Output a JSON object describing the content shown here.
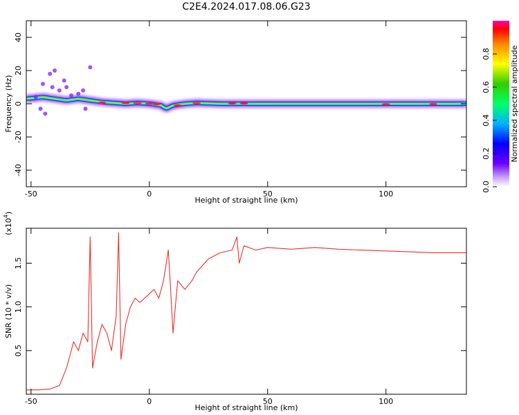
{
  "title": "C2E4.2024.017.08.06.G23",
  "chart_data": [
    {
      "type": "heatmap",
      "xlabel": "Height of straight line (km)",
      "ylabel": "Frequency (Hz)",
      "xlim": [
        -52,
        134
      ],
      "ylim": [
        -50,
        50
      ],
      "x_ticks": [
        -50,
        0,
        50,
        100
      ],
      "y_ticks": [
        -40,
        -20,
        0,
        20,
        40
      ],
      "x_tick_labels": [
        "-50",
        "0",
        "50",
        "100"
      ],
      "y_tick_labels": [
        "-40",
        "-20",
        "0",
        "20",
        "40"
      ],
      "colorbar": {
        "label": "Normalized spectral amplitude",
        "range": [
          0,
          1
        ],
        "ticks": [
          0.0,
          0.2,
          0.4,
          0.6,
          0.8
        ],
        "tick_labels": [
          "0.0",
          "0.2",
          "0.4",
          "0.6",
          "0.8"
        ]
      },
      "ridge": {
        "x": [
          -52,
          -45,
          -40,
          -35,
          -30,
          -25,
          -20,
          -15,
          -10,
          -5,
          0,
          5,
          7,
          10,
          15,
          20,
          30,
          40,
          50,
          60,
          70,
          80,
          90,
          100,
          110,
          120,
          134
        ],
        "y": [
          3,
          4,
          3,
          2,
          3,
          2,
          1,
          0.5,
          0,
          0.5,
          0,
          -1,
          -3,
          -1,
          0,
          0.5,
          0,
          0,
          0,
          0,
          0,
          0,
          0,
          0,
          0,
          0,
          0
        ]
      }
    },
    {
      "type": "line",
      "xlabel": "Height of straight line (km)",
      "ylabel": "SNR (10 * v/v)",
      "scale_label": "(x10",
      "scale_exp": "4",
      "scale_close": ")",
      "xlim": [
        -52,
        134
      ],
      "ylim": [
        0,
        1.9
      ],
      "x_ticks": [
        -50,
        0,
        50,
        100
      ],
      "y_ticks": [
        0.5,
        1.0,
        1.5
      ],
      "x_tick_labels": [
        "-50",
        "0",
        "50",
        "100"
      ],
      "y_tick_labels": [
        "0.5",
        "1.0",
        "1.5"
      ],
      "series": [
        {
          "color": "#e8302c",
          "x": [
            -52,
            -47,
            -42,
            -38,
            -35,
            -32,
            -30,
            -28,
            -26,
            -25,
            -24,
            -22,
            -20,
            -18,
            -16,
            -14,
            -13,
            -12,
            -10,
            -8,
            -6,
            -4,
            -2,
            0,
            2,
            4,
            6,
            8,
            9,
            10,
            12,
            15,
            18,
            20,
            25,
            30,
            35,
            37,
            38,
            40,
            45,
            50,
            60,
            70,
            80,
            90,
            100,
            110,
            120,
            134
          ],
          "y": [
            0.05,
            0.05,
            0.06,
            0.1,
            0.3,
            0.6,
            0.5,
            0.7,
            0.6,
            1.8,
            0.3,
            0.6,
            0.8,
            0.7,
            0.5,
            0.9,
            1.85,
            0.4,
            0.8,
            1.0,
            1.1,
            1.05,
            1.1,
            1.15,
            1.2,
            1.1,
            1.3,
            1.65,
            1.2,
            0.7,
            1.3,
            1.2,
            1.3,
            1.4,
            1.55,
            1.62,
            1.65,
            1.8,
            1.5,
            1.7,
            1.65,
            1.68,
            1.66,
            1.68,
            1.66,
            1.65,
            1.64,
            1.63,
            1.62,
            1.62
          ]
        }
      ]
    }
  ]
}
